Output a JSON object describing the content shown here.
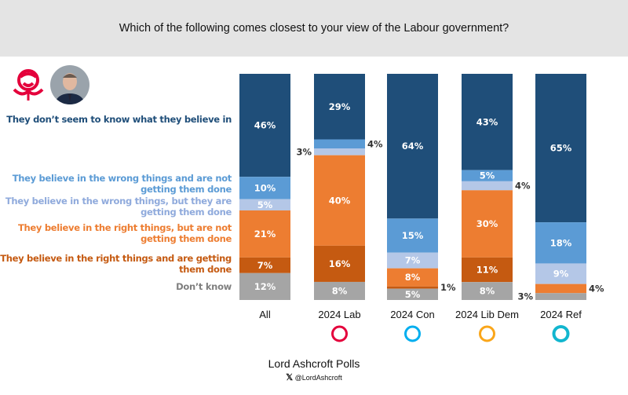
{
  "title": "Which of the following comes closest to your view of the Labour government?",
  "footer": {
    "source": "Lord Ashcroft Polls",
    "handle": "@LordAshcroft",
    "x_icon": "x-logo-icon"
  },
  "chart_data": {
    "type": "stacked-bar",
    "title": "Which of the following comes closest to your view of the Labour government?",
    "categories": [
      "All",
      "2024 Lab",
      "2024 Con",
      "2024 Lib Dem",
      "2024 Ref"
    ],
    "series": [
      {
        "name": "They don't seem to know what they believe in",
        "color": "#1f4e79",
        "values": [
          46,
          29,
          64,
          43,
          65
        ]
      },
      {
        "name": "They believe in the wrong things and are not getting them done",
        "color": "#5b9bd5",
        "values": [
          10,
          4,
          15,
          5,
          18
        ]
      },
      {
        "name": "They believe in the wrong things, but they are getting them done",
        "color": "#b4c7e7",
        "values": [
          5,
          3,
          7,
          4,
          9
        ]
      },
      {
        "name": "They believe in the right things, but are not getting them done",
        "color": "#ed7d31",
        "values": [
          21,
          40,
          8,
          30,
          4
        ]
      },
      {
        "name": "They believe in the right things and are getting them done",
        "color": "#c55a11",
        "values": [
          7,
          16,
          1,
          11,
          0
        ]
      },
      {
        "name": "Don't know",
        "color": "#a5a5a5",
        "values": [
          12,
          8,
          5,
          8,
          3
        ]
      }
    ],
    "label_colors": [
      "#1f4e79",
      "#5b9bd5",
      "#8faadc",
      "#ed7d31",
      "#c55a11",
      "#7f7f7f"
    ],
    "legend": "left",
    "value_suffix": "%",
    "category_icons": [
      "",
      "labour-rose-icon",
      "conservative-tree-icon",
      "libdem-bird-icon",
      "reform-uk-icon"
    ]
  }
}
